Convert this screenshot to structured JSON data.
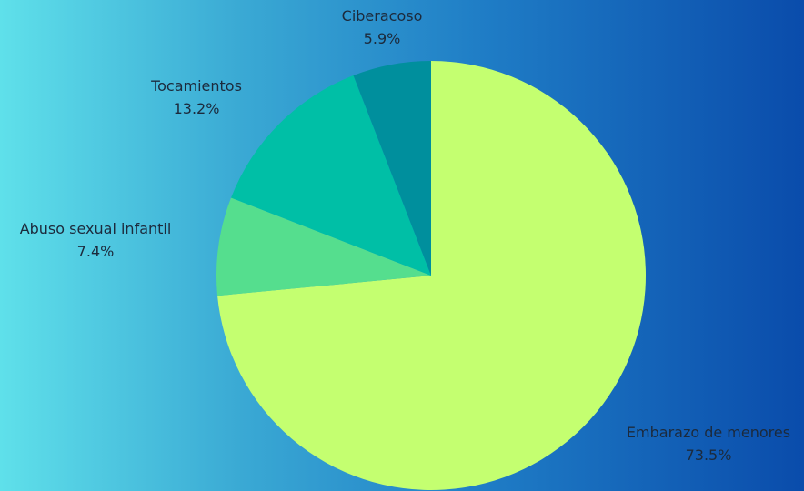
{
  "chart_data": {
    "type": "pie",
    "start_angle_deg": 0,
    "direction": "clockwise",
    "slices": [
      {
        "name": "Embarazo de menores",
        "value": 73.5,
        "label": "73.5%",
        "color": "#c4ff70"
      },
      {
        "name": "Abuso sexual infantil",
        "value": 7.4,
        "label": "7.4%",
        "color": "#55de8e"
      },
      {
        "name": "Tocamientos",
        "value": 13.2,
        "label": "13.2%",
        "color": "#00bfa6"
      },
      {
        "name": "Ciberacoso",
        "value": 5.9,
        "label": "5.9%",
        "color": "#008f9d"
      }
    ]
  }
}
